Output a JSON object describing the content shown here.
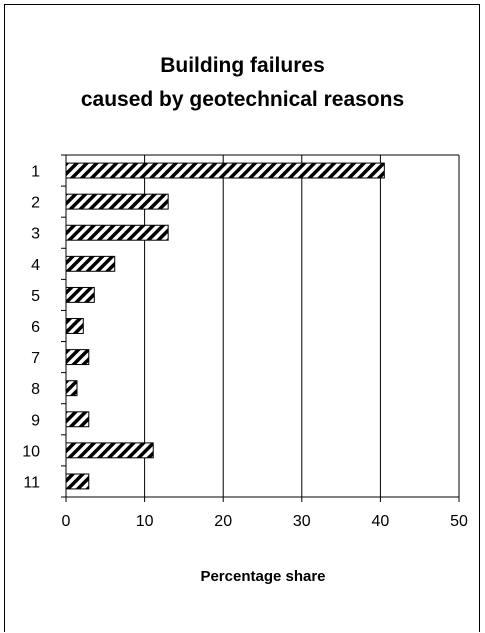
{
  "chart_data": {
    "type": "bar",
    "orientation": "horizontal",
    "title_line1": "Building failures",
    "title_line2": "caused by geotechnical reasons",
    "xlabel": "Percentage share",
    "ylabel": "",
    "categories": [
      "1",
      "2",
      "3",
      "4",
      "5",
      "6",
      "7",
      "8",
      "9",
      "10",
      "11"
    ],
    "values": [
      40.5,
      13,
      13,
      6.2,
      3.6,
      2.2,
      2.9,
      1.4,
      2.9,
      11.1,
      2.9
    ],
    "xlim": [
      0,
      50
    ],
    "xticks": [
      "0",
      "10",
      "20",
      "30",
      "40",
      "50"
    ],
    "grid": "vertical",
    "fill_pattern": "diagonal-hatch",
    "bar_fill_color": "#000000",
    "bar_bg_color": "#ffffff",
    "gridline_color": "#000000"
  }
}
